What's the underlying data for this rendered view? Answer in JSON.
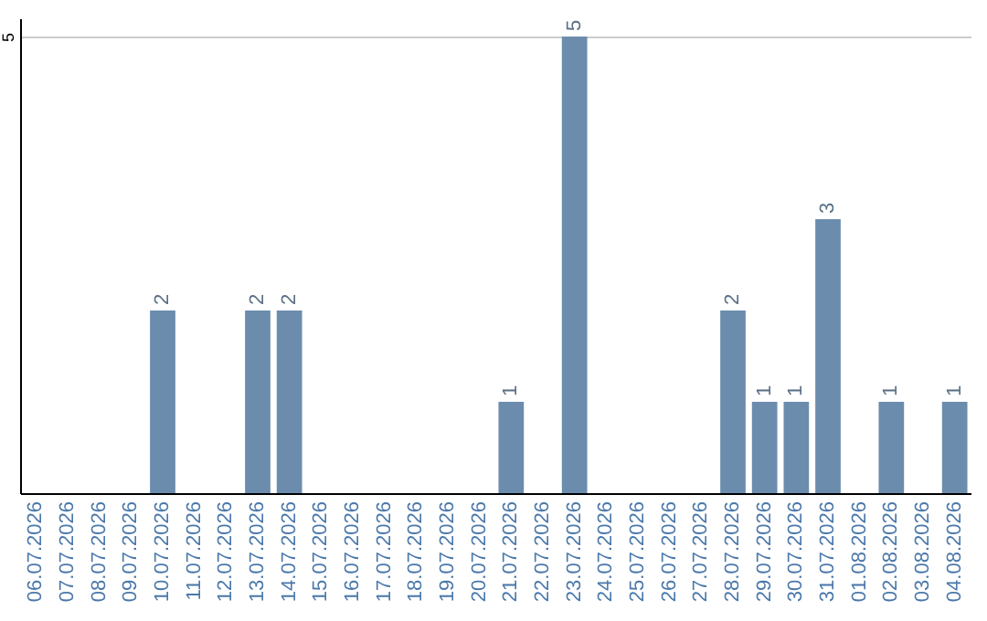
{
  "chart_data": {
    "type": "bar",
    "categories": [
      "06.07.2026",
      "07.07.2026",
      "08.07.2026",
      "09.07.2026",
      "10.07.2026",
      "11.07.2026",
      "12.07.2026",
      "13.07.2026",
      "14.07.2026",
      "15.07.2026",
      "16.07.2026",
      "17.07.2026",
      "18.07.2026",
      "19.07.2026",
      "20.07.2026",
      "21.07.2026",
      "22.07.2026",
      "23.07.2026",
      "24.07.2026",
      "25.07.2026",
      "26.07.2026",
      "27.07.2026",
      "28.07.2026",
      "29.07.2026",
      "30.07.2026",
      "31.07.2026",
      "01.08.2026",
      "02.08.2026",
      "03.08.2026",
      "04.08.2026"
    ],
    "values": [
      0,
      0,
      0,
      0,
      2,
      0,
      0,
      2,
      2,
      0,
      0,
      0,
      0,
      0,
      0,
      1,
      0,
      5,
      0,
      0,
      0,
      0,
      2,
      1,
      1,
      3,
      0,
      1,
      0,
      1
    ],
    "value_labels": [
      null,
      null,
      null,
      null,
      "2",
      null,
      null,
      "2",
      "2",
      null,
      null,
      null,
      null,
      null,
      null,
      "1",
      null,
      "5",
      null,
      null,
      null,
      null,
      "2",
      "1",
      "1",
      "3",
      null,
      "1",
      null,
      "1"
    ],
    "color": "#6b8cad",
    "ylim": [
      0,
      5.2
    ],
    "yticks": [
      5
    ],
    "grid": "y"
  }
}
